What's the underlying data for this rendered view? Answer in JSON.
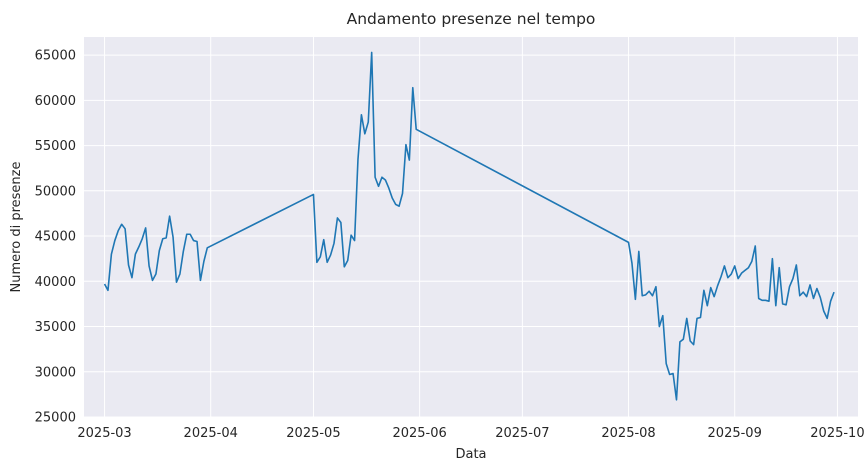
{
  "chart_data": {
    "type": "line",
    "title": "Andamento presenze nel tempo",
    "xlabel": "Data",
    "ylabel": "Numero di presenze",
    "xlim": [
      "2025-02-23",
      "2025-10-07"
    ],
    "ylim": [
      25000,
      67000
    ],
    "grid": true,
    "line_color": "#1f77b4",
    "background_color": "#eaeaf2",
    "x_ticks": [
      "2025-03-01",
      "2025-04-01",
      "2025-05-01",
      "2025-06-01",
      "2025-07-01",
      "2025-08-01",
      "2025-09-01",
      "2025-10-01"
    ],
    "x_tick_labels": [
      "2025-03",
      "2025-04",
      "2025-05",
      "2025-06",
      "2025-07",
      "2025-08",
      "2025-09",
      "2025-10"
    ],
    "y_ticks": [
      25000,
      30000,
      35000,
      40000,
      45000,
      50000,
      55000,
      60000,
      65000
    ],
    "y_tick_labels": [
      "25000",
      "30000",
      "35000",
      "40000",
      "45000",
      "50000",
      "55000",
      "60000",
      "65000"
    ],
    "series": [
      {
        "points": [
          [
            "2025-03-01",
            39700
          ],
          [
            "2025-03-02",
            39000
          ],
          [
            "2025-03-03",
            43000
          ],
          [
            "2025-03-04",
            44500
          ],
          [
            "2025-03-05",
            45600
          ],
          [
            "2025-03-06",
            46300
          ],
          [
            "2025-03-07",
            45800
          ],
          [
            "2025-03-08",
            41800
          ],
          [
            "2025-03-09",
            40400
          ],
          [
            "2025-03-10",
            43000
          ],
          [
            "2025-03-11",
            43800
          ],
          [
            "2025-03-12",
            44700
          ],
          [
            "2025-03-13",
            45900
          ],
          [
            "2025-03-14",
            41700
          ],
          [
            "2025-03-15",
            40100
          ],
          [
            "2025-03-16",
            40800
          ],
          [
            "2025-03-17",
            43400
          ],
          [
            "2025-03-18",
            44700
          ],
          [
            "2025-03-19",
            44800
          ],
          [
            "2025-03-20",
            47200
          ],
          [
            "2025-03-21",
            44900
          ],
          [
            "2025-03-22",
            39900
          ],
          [
            "2025-03-23",
            40800
          ],
          [
            "2025-03-24",
            43300
          ],
          [
            "2025-03-25",
            45200
          ],
          [
            "2025-03-26",
            45200
          ],
          [
            "2025-03-27",
            44500
          ],
          [
            "2025-03-28",
            44400
          ],
          [
            "2025-03-29",
            40100
          ],
          [
            "2025-03-30",
            42200
          ],
          [
            "2025-03-31",
            43700
          ],
          [
            "2025-05-01",
            49600
          ],
          [
            "2025-05-02",
            42100
          ],
          [
            "2025-05-03",
            42700
          ],
          [
            "2025-05-04",
            44600
          ],
          [
            "2025-05-05",
            42100
          ],
          [
            "2025-05-06",
            42900
          ],
          [
            "2025-05-07",
            44200
          ],
          [
            "2025-05-08",
            47000
          ],
          [
            "2025-05-09",
            46500
          ],
          [
            "2025-05-10",
            41600
          ],
          [
            "2025-05-11",
            42300
          ],
          [
            "2025-05-12",
            45100
          ],
          [
            "2025-05-13",
            44500
          ],
          [
            "2025-05-14",
            53500
          ],
          [
            "2025-05-15",
            58400
          ],
          [
            "2025-05-16",
            56300
          ],
          [
            "2025-05-17",
            57600
          ],
          [
            "2025-05-18",
            65300
          ],
          [
            "2025-05-19",
            51500
          ],
          [
            "2025-05-20",
            50500
          ],
          [
            "2025-05-21",
            51500
          ],
          [
            "2025-05-22",
            51200
          ],
          [
            "2025-05-23",
            50300
          ],
          [
            "2025-05-24",
            49200
          ],
          [
            "2025-05-25",
            48500
          ],
          [
            "2025-05-26",
            48300
          ],
          [
            "2025-05-27",
            49700
          ],
          [
            "2025-05-28",
            55100
          ],
          [
            "2025-05-29",
            53400
          ],
          [
            "2025-05-30",
            61400
          ],
          [
            "2025-05-31",
            56800
          ],
          [
            "2025-08-01",
            44300
          ],
          [
            "2025-08-02",
            42000
          ],
          [
            "2025-08-03",
            38000
          ],
          [
            "2025-08-04",
            43300
          ],
          [
            "2025-08-05",
            38400
          ],
          [
            "2025-08-06",
            38500
          ],
          [
            "2025-08-07",
            38900
          ],
          [
            "2025-08-08",
            38400
          ],
          [
            "2025-08-09",
            39400
          ],
          [
            "2025-08-10",
            35000
          ],
          [
            "2025-08-11",
            36200
          ],
          [
            "2025-08-12",
            30900
          ],
          [
            "2025-08-13",
            29700
          ],
          [
            "2025-08-14",
            29800
          ],
          [
            "2025-08-15",
            26900
          ],
          [
            "2025-08-16",
            33300
          ],
          [
            "2025-08-17",
            33600
          ],
          [
            "2025-08-18",
            35900
          ],
          [
            "2025-08-19",
            33400
          ],
          [
            "2025-08-20",
            33000
          ],
          [
            "2025-08-21",
            35900
          ],
          [
            "2025-08-22",
            36000
          ],
          [
            "2025-08-23",
            39000
          ],
          [
            "2025-08-24",
            37300
          ],
          [
            "2025-08-25",
            39300
          ],
          [
            "2025-08-26",
            38300
          ],
          [
            "2025-08-27",
            39500
          ],
          [
            "2025-08-28",
            40500
          ],
          [
            "2025-08-29",
            41700
          ],
          [
            "2025-08-30",
            40400
          ],
          [
            "2025-08-31",
            40800
          ],
          [
            "2025-09-01",
            41700
          ],
          [
            "2025-09-02",
            40300
          ],
          [
            "2025-09-03",
            40900
          ],
          [
            "2025-09-04",
            41200
          ],
          [
            "2025-09-05",
            41500
          ],
          [
            "2025-09-06",
            42200
          ],
          [
            "2025-09-07",
            43900
          ],
          [
            "2025-09-08",
            38100
          ],
          [
            "2025-09-09",
            37900
          ],
          [
            "2025-09-10",
            37900
          ],
          [
            "2025-09-11",
            37800
          ],
          [
            "2025-09-12",
            42500
          ],
          [
            "2025-09-13",
            37300
          ],
          [
            "2025-09-14",
            41500
          ],
          [
            "2025-09-15",
            37500
          ],
          [
            "2025-09-16",
            37400
          ],
          [
            "2025-09-17",
            39400
          ],
          [
            "2025-09-18",
            40300
          ],
          [
            "2025-09-19",
            41800
          ],
          [
            "2025-09-20",
            38400
          ],
          [
            "2025-09-21",
            38800
          ],
          [
            "2025-09-22",
            38300
          ],
          [
            "2025-09-23",
            39600
          ],
          [
            "2025-09-24",
            38100
          ],
          [
            "2025-09-25",
            39200
          ],
          [
            "2025-09-26",
            38200
          ],
          [
            "2025-09-27",
            36700
          ],
          [
            "2025-09-28",
            35900
          ],
          [
            "2025-09-29",
            37800
          ],
          [
            "2025-09-30",
            38800
          ]
        ]
      }
    ]
  }
}
